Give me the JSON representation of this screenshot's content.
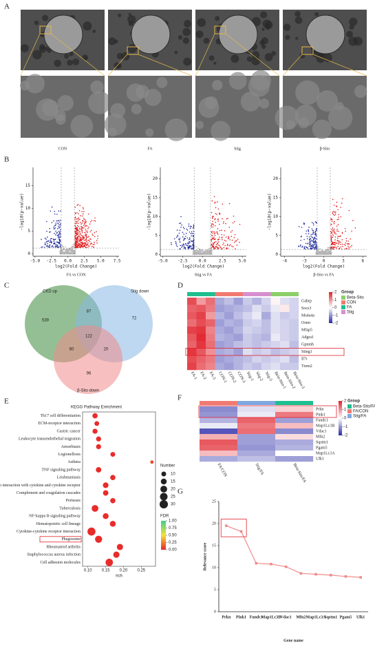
{
  "panel_labels": [
    "A",
    "B",
    "C",
    "D",
    "E",
    "F",
    "G"
  ],
  "panel_a": {
    "groups": [
      "CON",
      "FA",
      "Stig",
      "β-Sito"
    ]
  },
  "chart_data": [
    {
      "type": "volcano",
      "title": "FA vs CON",
      "x_label": "log2(Fold Change)",
      "y_label": "-log10(p-value)",
      "xlim": [
        -5.3,
        7.8
      ],
      "ylim": [
        -0.5,
        19
      ],
      "xticks": [
        {
          "value": -5,
          "label": "-5.0"
        },
        {
          "value": -2.5,
          "label": "-2.5"
        },
        {
          "value": 0,
          "label": "0.0"
        },
        {
          "value": 2.5,
          "label": "2.5"
        },
        {
          "value": 5,
          "label": "5.0"
        },
        {
          "value": 7.5,
          "label": "7.5"
        }
      ],
      "yticks": [
        0,
        5,
        10,
        15
      ],
      "colors": {
        "down": "#1f2a9c",
        "up": "#e31a1c",
        "ns": "#b5b5b5"
      }
    },
    {
      "type": "volcano",
      "title": "Stig vs FA",
      "x_label": "log2(Fold Change)",
      "y_label": "-log10(p-value)",
      "xlim": [
        -5.3,
        5.5
      ],
      "ylim": [
        -0.5,
        23
      ],
      "xticks": [
        {
          "value": -5,
          "label": "-5.0"
        },
        {
          "value": -2.5,
          "label": "-2.5"
        },
        {
          "value": 0,
          "label": "0.0"
        },
        {
          "value": 2.5,
          "label": "2.5"
        },
        {
          "value": 5,
          "label": "5.0"
        }
      ],
      "yticks": [
        0,
        5,
        10,
        15,
        20
      ],
      "colors": {
        "down": "#1f2a9c",
        "up": "#e31a1c",
        "ns": "#b5b5b5"
      }
    },
    {
      "type": "volcano",
      "title": "β-Sito vs FA",
      "x_label": "log2(Fold Change)",
      "y_label": "-log10(p-value)",
      "xlim": [
        -6.6,
        6.6
      ],
      "ylim": [
        -0.5,
        23
      ],
      "xticks": [
        -6,
        -3,
        0,
        3,
        6
      ],
      "yticks": [
        0,
        5,
        10,
        15,
        20
      ],
      "colors": {
        "down": "#1f2a9c",
        "up": "#e31a1c",
        "ns": "#b5b5b5"
      }
    },
    {
      "type": "venn",
      "sets": [
        {
          "name": "CKD up",
          "color": "#3d8b3d"
        },
        {
          "name": "Stig down",
          "color": "#86b8e3"
        },
        {
          "name": "β-Sito down",
          "color": "#f08a8a"
        }
      ],
      "values": [
        539,
        87,
        72,
        122,
        60,
        20,
        96
      ]
    },
    {
      "type": "heatmap",
      "rows": [
        "Gabrp",
        "Socs3",
        "Ms4a4a",
        "Osmr",
        "Mfap5",
        "Adgra1",
        "Gpnmb",
        "Sting1",
        "Il7r",
        "Trem2"
      ],
      "columns": [
        "FA-1",
        "FA-2",
        "FA-3",
        "CON-1",
        "CON-2",
        "CON-3",
        "Stig-1",
        "Stig-2",
        "Stig-3",
        "Beta-Sito-1",
        "Beta-Sito-2",
        "Beta-Sito-3"
      ],
      "values": [
        [
          1.6,
          0.9,
          1.3,
          -0.8,
          -0.6,
          -0.9,
          -0.5,
          -0.7,
          -0.4,
          0.1,
          -0.3,
          -0.4
        ],
        [
          1.4,
          1.5,
          1.2,
          -0.9,
          -0.8,
          -0.7,
          -0.6,
          -0.3,
          -0.5,
          -0.2,
          0.2,
          -0.4
        ],
        [
          1.5,
          1.7,
          0.9,
          -0.7,
          -0.9,
          -0.6,
          -0.4,
          -0.2,
          -0.8,
          -0.3,
          -0.5,
          -0.4
        ],
        [
          1.3,
          1.6,
          1.4,
          -0.9,
          -0.7,
          -0.8,
          -0.5,
          -0.4,
          -0.6,
          -0.3,
          -0.4,
          -0.5
        ],
        [
          1.7,
          1.8,
          1.1,
          -0.8,
          -0.9,
          -0.7,
          -0.4,
          -0.5,
          -0.6,
          -0.3,
          -0.4,
          -0.5
        ],
        [
          1.5,
          1.9,
          1.2,
          -0.7,
          -0.8,
          -0.9,
          -0.5,
          -0.6,
          -0.7,
          -0.2,
          -0.4,
          -0.5
        ],
        [
          1.4,
          1.8,
          1.3,
          -0.9,
          -0.8,
          -0.6,
          -0.5,
          -0.6,
          -0.5,
          -0.4,
          -0.3,
          -0.6
        ],
        [
          1.8,
          1.5,
          1.0,
          -0.8,
          -0.7,
          -0.9,
          -0.3,
          -0.5,
          -0.4,
          -0.6,
          -0.5,
          -0.4
        ],
        [
          1.6,
          1.4,
          1.2,
          -0.9,
          -0.8,
          -0.7,
          -0.6,
          -0.4,
          -0.5,
          -0.4,
          -0.3,
          -0.6
        ],
        [
          1.7,
          1.3,
          1.1,
          -0.8,
          -0.9,
          -0.7,
          -0.5,
          -0.6,
          -0.4,
          -0.3,
          -0.5,
          -0.5
        ]
      ],
      "zlim": [
        -2,
        2
      ],
      "scale_ticks": [
        2,
        1,
        0,
        -1,
        -2
      ],
      "scale_colors": [
        "#2a2aa8",
        "#ffffff",
        "#e0202a"
      ],
      "legend_title": "Group",
      "groups": [
        {
          "name": "Beta-Sito",
          "color": "#8ccf6a"
        },
        {
          "name": "CON",
          "color": "#f07a72"
        },
        {
          "name": "FA",
          "color": "#1fbf8f"
        },
        {
          "name": "Stig",
          "color": "#d68fd0"
        }
      ]
    },
    {
      "type": "dot",
      "title": "KEGG Pathway Enrichment",
      "x_label": "rich",
      "categories": [
        "Th17 cell differentiation",
        "ECM-receptor interaction",
        "Gastric cancer",
        "Leukocyte transendothelial migration",
        "Amoebiasis",
        "Legionellosis",
        "Asthma",
        "TNF signaling pathway",
        "Leishmaniasis",
        "Viral protein interaction with cytokine and cytokine receptor",
        "Complement and coagulation cascades",
        "Pertussis",
        "Tuberculosis",
        "NF-kappa B signaling pathway",
        "Hematopoietic cell lineage",
        "Cytokine-cytokine receptor interaction",
        "Phagosome",
        "Rheumatoid arthritis",
        "Staphylococcus aureus infection",
        "Cell adhesion molecules"
      ],
      "x": [
        0.12,
        0.125,
        0.12,
        0.13,
        0.13,
        0.17,
        0.28,
        0.13,
        0.17,
        0.15,
        0.15,
        0.17,
        0.12,
        0.15,
        0.17,
        0.11,
        0.13,
        0.19,
        0.18,
        0.16
      ],
      "sizes": [
        12,
        10,
        11,
        11,
        11,
        10,
        5,
        13,
        12,
        14,
        13,
        12,
        20,
        15,
        15,
        28,
        22,
        17,
        17,
        24
      ],
      "fdr": [
        0.02,
        0.02,
        0.02,
        0.02,
        0.02,
        0.02,
        0.1,
        0.02,
        0.02,
        0.02,
        0.02,
        0.02,
        0.02,
        0.02,
        0.02,
        0.02,
        0.02,
        0.02,
        0.02,
        0.02
      ],
      "xlim": [
        0.085,
        0.29
      ],
      "xticks": [
        {
          "value": 0.1,
          "label": "0.10"
        },
        {
          "value": 0.15,
          "label": "0.15"
        },
        {
          "value": 0.2,
          "label": "0.20"
        },
        {
          "value": 0.25,
          "label": "0.25"
        }
      ],
      "size_title": "Number",
      "size_ticks": [
        10,
        15,
        20,
        25,
        30
      ],
      "color_title": "FDR",
      "color_ticks": [
        {
          "value": 1,
          "label": "1.00"
        },
        {
          "value": 0.75,
          "label": "0.75"
        },
        {
          "value": 0.5,
          "label": "0.50"
        },
        {
          "value": 0.25,
          "label": "0.25"
        },
        {
          "value": 0,
          "label": "0.00"
        }
      ],
      "fdr_colors": [
        "#e8252a",
        "#f2e03a",
        "#3fcf8a"
      ]
    },
    {
      "type": "heatmap",
      "rows": [
        "Prkn",
        "Pink1",
        "Fundc1",
        "Map1Lc3B",
        "Vdac1",
        "Mfn2",
        "Sqstm1",
        "Pgam5",
        "Map1Lc3A",
        "Ulk1"
      ],
      "columns": [
        "FA/CON",
        "Stig/FA",
        "Beta-Sito/FA"
      ],
      "values": [
        [
          -1.1,
          -0.3,
          0.4
        ],
        [
          -1.0,
          -0.2,
          1.2
        ],
        [
          -0.7,
          1.4,
          -0.9
        ],
        [
          -0.2,
          1.2,
          0.6
        ],
        [
          -1.6,
          1.3,
          -1.1
        ],
        [
          0.7,
          -0.9,
          0.3
        ],
        [
          1.5,
          -0.9,
          -0.8
        ],
        [
          1.4,
          -1.0,
          -0.7
        ],
        [
          0.6,
          -0.8,
          0.0
        ],
        [
          -0.8,
          -0.6,
          -0.9
        ]
      ],
      "zlim": [
        -2,
        2
      ],
      "scale_ticks": [
        2,
        1,
        0,
        -1,
        -2
      ],
      "scale_colors": [
        "#2a2aa8",
        "#ffffff",
        "#e0202a"
      ],
      "legend_title": "Group",
      "groups": [
        {
          "name": "Beta-Sito/FA",
          "color": "#1fbf8f"
        },
        {
          "name": "FA/CON",
          "color": "#f07a72"
        },
        {
          "name": "Stig/FA",
          "color": "#7fa8e0"
        }
      ]
    },
    {
      "type": "line",
      "x_label": "Gene name",
      "y_label": "Relevance score",
      "color": "#f08a8a",
      "categories": [
        "Prkn",
        "Pink1",
        "Fundc1",
        "Map1Lc3B",
        "Vdac1",
        "Mfn2",
        "Map1Lc3A",
        "Sqstm1",
        "Pgam5",
        "Ulk1"
      ],
      "values": [
        19.5,
        18.2,
        11,
        10.8,
        10.2,
        8.7,
        8.5,
        8.3,
        8,
        7.8
      ],
      "ylim": [
        0,
        25
      ],
      "yticks": [
        0,
        5,
        10,
        15,
        20,
        25
      ]
    }
  ]
}
